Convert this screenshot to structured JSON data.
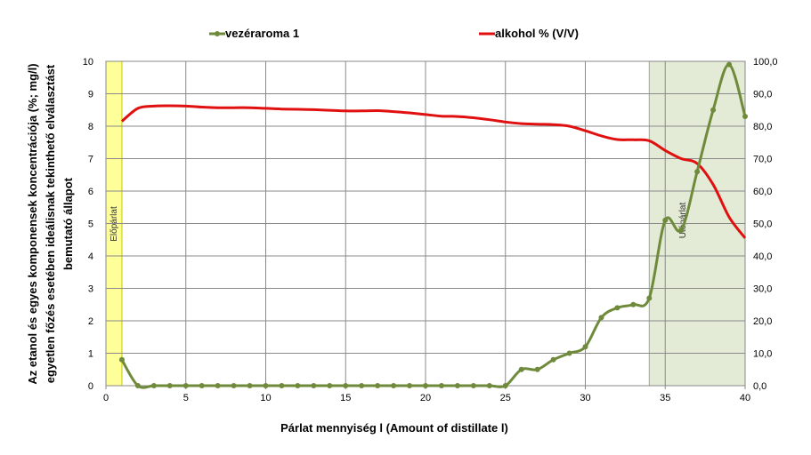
{
  "chart_data": {
    "type": "line",
    "xlabel": "Párlat mennyiség l (Amount of distillate  l)",
    "ylabel_lines": [
      "Az etanol és egyes komponensek koncentrációja (%; mg/l)",
      "egyetlen főzés esetében ideálisnak tekinthető elválasztást",
      "bemutató állapot"
    ],
    "xlim": [
      0,
      40
    ],
    "ylim_left": [
      0,
      10
    ],
    "ylim_right": [
      0,
      100
    ],
    "x_ticks": [
      0,
      5,
      10,
      15,
      20,
      25,
      30,
      35,
      40
    ],
    "y_left_ticks": [
      "0",
      "1",
      "2",
      "3",
      "4",
      "5",
      "6",
      "7",
      "8",
      "9",
      "10"
    ],
    "y_right_ticks": [
      "0,0",
      "10,0",
      "20,0",
      "30,0",
      "40,0",
      "50,0",
      "60,0",
      "70,0",
      "80,0",
      "90,0",
      "100,0"
    ],
    "grid": true,
    "legend_position": "top",
    "bands": [
      {
        "label": "Előpárlat",
        "x_start": 0,
        "x_end": 1,
        "color": "#ffff99"
      },
      {
        "label": "Utópárlat",
        "x_start": 34,
        "x_end": 40,
        "color": "#e3ead6"
      }
    ],
    "series": [
      {
        "name": "vezéraroma 1",
        "axis": "left",
        "color": "#6e8a3a",
        "markers": true,
        "x": [
          1,
          2,
          3,
          4,
          5,
          6,
          7,
          8,
          9,
          10,
          11,
          12,
          13,
          14,
          15,
          16,
          17,
          18,
          19,
          20,
          21,
          22,
          23,
          24,
          25,
          26,
          27,
          28,
          29,
          30,
          31,
          32,
          33,
          34,
          35,
          36,
          37,
          38,
          39,
          40
        ],
        "y": [
          0.8,
          0,
          0,
          0,
          0,
          0,
          0,
          0,
          0,
          0,
          0,
          0,
          0,
          0,
          0,
          0,
          0,
          0,
          0,
          0,
          0,
          0,
          0,
          0,
          0,
          0.5,
          0.5,
          0.8,
          1.0,
          1.2,
          2.1,
          2.4,
          2.5,
          2.7,
          5.1,
          4.8,
          6.6,
          8.5,
          9.9,
          8.3
        ]
      },
      {
        "name": "alkohol % (V/V)",
        "axis": "right",
        "color": "#e01010",
        "markers": false,
        "x": [
          1,
          2,
          3,
          4,
          5,
          6,
          7,
          8,
          9,
          10,
          11,
          12,
          13,
          14,
          15,
          16,
          17,
          18,
          19,
          20,
          21,
          22,
          23,
          24,
          25,
          26,
          27,
          28,
          29,
          30,
          31,
          32,
          33,
          34,
          35,
          36,
          37,
          38,
          39,
          40
        ],
        "y": [
          81.5,
          85.5,
          86.2,
          86.3,
          86.2,
          85.9,
          85.7,
          85.7,
          85.7,
          85.5,
          85.3,
          85.2,
          85.1,
          84.9,
          84.7,
          84.7,
          84.8,
          84.5,
          84.1,
          83.6,
          83.1,
          83.0,
          82.6,
          82.0,
          81.3,
          80.8,
          80.6,
          80.5,
          80.0,
          78.6,
          77.0,
          75.9,
          75.8,
          75.5,
          72.5,
          70.0,
          68.5,
          62.0,
          52.0,
          45.5
        ]
      }
    ]
  }
}
